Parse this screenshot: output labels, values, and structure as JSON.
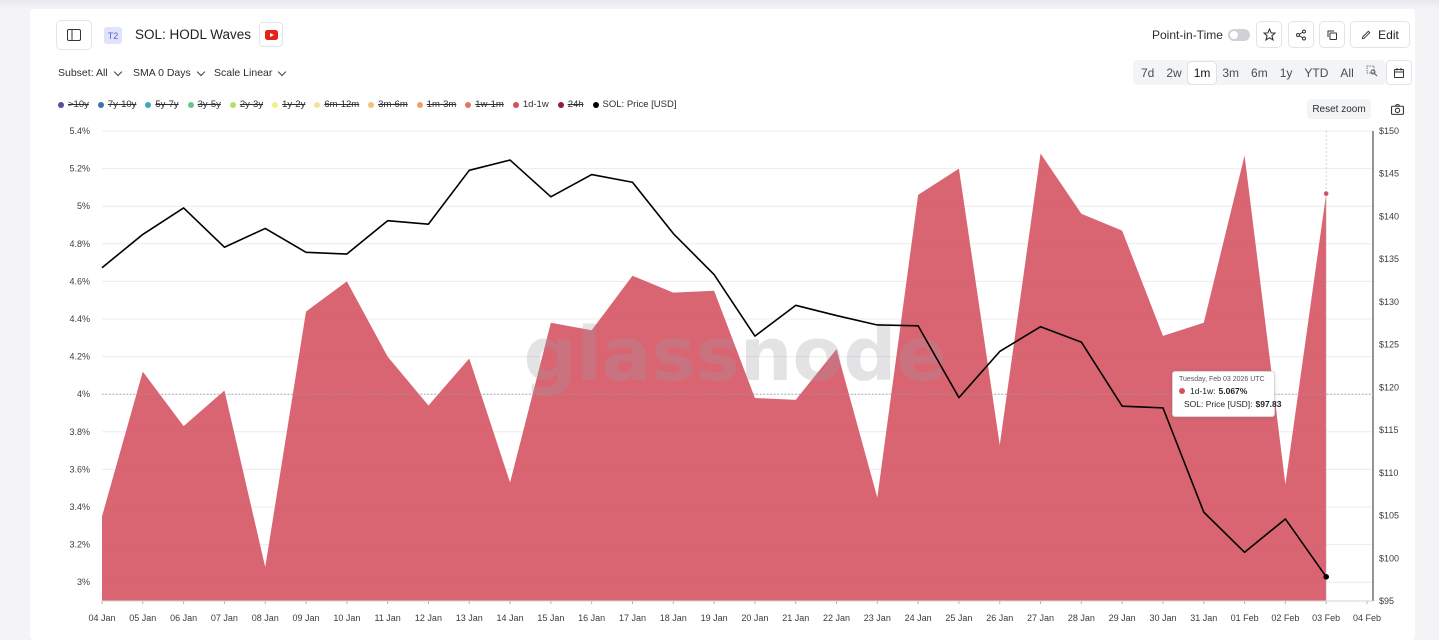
{
  "header": {
    "tier_badge": "T2",
    "title": "SOL: HODL Waves",
    "point_in_time": "Point-in-Time",
    "edit_label": "Edit"
  },
  "controls": {
    "subset": "Subset: All",
    "sma": "SMA 0 Days",
    "scale": "Scale Linear"
  },
  "ranges": [
    "7d",
    "2w",
    "1m",
    "3m",
    "6m",
    "1y",
    "YTD",
    "All"
  ],
  "active_range": "1m",
  "reset_zoom": "Reset zoom",
  "legend": [
    {
      "label": ">10y",
      "color": "#5b4a9e",
      "hidden": true
    },
    {
      "label": "7y-10y",
      "color": "#3f6fb0",
      "hidden": true
    },
    {
      "label": "5y-7y",
      "color": "#3fa7b8",
      "hidden": true
    },
    {
      "label": "3y-5y",
      "color": "#6cc28a",
      "hidden": true
    },
    {
      "label": "2y-3y",
      "color": "#b9dc6e",
      "hidden": true
    },
    {
      "label": "1y-2y",
      "color": "#eef08a",
      "hidden": true
    },
    {
      "label": "6m-12m",
      "color": "#f6e39a",
      "hidden": true
    },
    {
      "label": "3m-6m",
      "color": "#f2c27a",
      "hidden": true
    },
    {
      "label": "1m-3m",
      "color": "#ee9f63",
      "hidden": true
    },
    {
      "label": "1w-1m",
      "color": "#e07762",
      "hidden": true
    },
    {
      "label": "1d-1w",
      "color": "#d5505f",
      "hidden": false
    },
    {
      "label": "24h",
      "color": "#8e1b45",
      "hidden": true
    },
    {
      "label": "SOL: Price [USD]",
      "color": "#000000",
      "hidden": false
    }
  ],
  "watermark": "glassnode",
  "tooltip": {
    "date": "Tuesday, Feb 03 2026 UTC",
    "row1_label": "1d-1w:",
    "row1_value": "5.067%",
    "row2_label": "SOL: Price [USD]:",
    "row2_value": "$97.83"
  },
  "chart_data": {
    "type": "area",
    "x": [
      "04 Jan",
      "05 Jan",
      "06 Jan",
      "07 Jan",
      "08 Jan",
      "09 Jan",
      "10 Jan",
      "11 Jan",
      "12 Jan",
      "13 Jan",
      "14 Jan",
      "15 Jan",
      "16 Jan",
      "17 Jan",
      "18 Jan",
      "19 Jan",
      "20 Jan",
      "21 Jan",
      "22 Jan",
      "23 Jan",
      "24 Jan",
      "25 Jan",
      "26 Jan",
      "27 Jan",
      "28 Jan",
      "29 Jan",
      "30 Jan",
      "31 Jan",
      "01 Feb",
      "02 Feb",
      "03 Feb"
    ],
    "x_ticks": [
      "04 Jan",
      "05 Jan",
      "06 Jan",
      "07 Jan",
      "08 Jan",
      "09 Jan",
      "10 Jan",
      "11 Jan",
      "12 Jan",
      "13 Jan",
      "14 Jan",
      "15 Jan",
      "16 Jan",
      "17 Jan",
      "18 Jan",
      "19 Jan",
      "20 Jan",
      "21 Jan",
      "22 Jan",
      "23 Jan",
      "24 Jan",
      "25 Jan",
      "26 Jan",
      "27 Jan",
      "28 Jan",
      "29 Jan",
      "30 Jan",
      "31 Jan",
      "01 Feb",
      "02 Feb",
      "03 Feb",
      "04 Feb"
    ],
    "series": [
      {
        "name": "1d-1w",
        "axis": "left",
        "color": "#d5505f",
        "values": [
          3.35,
          4.12,
          3.83,
          4.02,
          3.08,
          4.44,
          4.6,
          4.2,
          3.94,
          4.19,
          3.53,
          4.38,
          4.34,
          4.63,
          4.54,
          4.55,
          3.98,
          3.97,
          4.24,
          3.45,
          5.06,
          5.2,
          3.73,
          5.28,
          4.96,
          4.87,
          4.31,
          4.38,
          5.27,
          3.52,
          5.067
        ]
      },
      {
        "name": "SOL: Price [USD]",
        "axis": "right",
        "color": "#000000",
        "values": [
          134.0,
          137.9,
          141.0,
          136.4,
          138.6,
          135.8,
          135.6,
          139.5,
          139.1,
          145.4,
          146.6,
          142.3,
          144.9,
          144.0,
          138.0,
          133.2,
          126.0,
          129.6,
          128.4,
          127.3,
          127.2,
          118.8,
          124.2,
          127.1,
          125.3,
          117.8,
          117.6,
          105.4,
          100.7,
          104.6,
          97.83
        ]
      }
    ],
    "y_left": {
      "ticks": [
        "3%",
        "3.2%",
        "3.4%",
        "3.6%",
        "3.8%",
        "4%",
        "4.2%",
        "4.4%",
        "4.6%",
        "4.8%",
        "5%",
        "5.2%",
        "5.4%"
      ],
      "range": [
        2.9,
        5.4
      ]
    },
    "y_right": {
      "ticks": [
        "$95",
        "$100",
        "$105",
        "$110",
        "$115",
        "$120",
        "$125",
        "$130",
        "$135",
        "$140",
        "$145",
        "$150"
      ],
      "range": [
        95,
        150
      ]
    },
    "reference_line_left": 4.0
  }
}
